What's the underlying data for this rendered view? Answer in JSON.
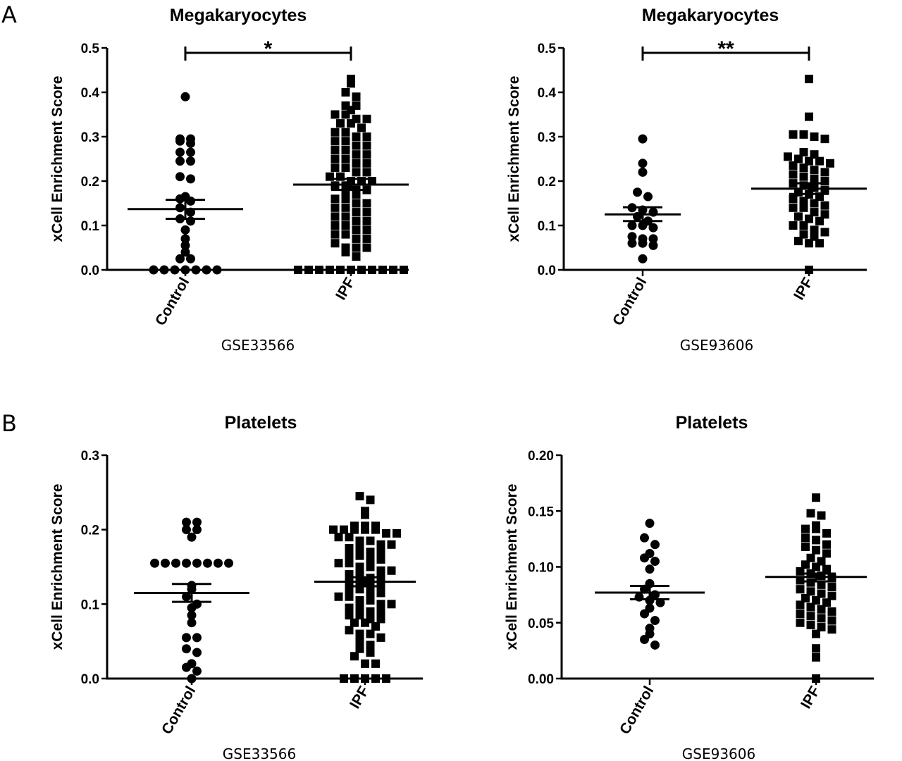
{
  "panel_labels": [
    "A",
    "B"
  ],
  "axis_ylabel": "xCell Enrichment Score",
  "chart_data": [
    {
      "type": "scatter",
      "title": "Megakaryocytes",
      "dataset": "GSE33566",
      "ylabel": "xCell Enrichment Score",
      "ylim": [
        0,
        0.5
      ],
      "yticks": [
        "0.0",
        "0.1",
        "0.2",
        "0.3",
        "0.4",
        "0.5"
      ],
      "categories": [
        "Control",
        "IPF"
      ],
      "significance": "*",
      "groups": [
        {
          "name": "Control",
          "marker": "circle",
          "mean": 0.137,
          "sem_low": 0.115,
          "sem_high": 0.158,
          "values": [
            0.39,
            0.295,
            0.29,
            0.295,
            0.285,
            0.265,
            0.265,
            0.245,
            0.245,
            0.21,
            0.205,
            0.165,
            0.16,
            0.155,
            0.14,
            0.13,
            0.115,
            0.11,
            0.09,
            0.07,
            0.055,
            0.04,
            0.025,
            0.025,
            0.0,
            0.0,
            0.0,
            0.0,
            0.0,
            0.0,
            0.0
          ]
        },
        {
          "name": "IPF",
          "marker": "square",
          "mean": 0.192,
          "sem_low": 0.18,
          "sem_high": 0.205,
          "values": [
            0.43,
            0.42,
            0.4,
            0.39,
            0.37,
            0.37,
            0.36,
            0.35,
            0.35,
            0.34,
            0.34,
            0.33,
            0.33,
            0.32,
            0.31,
            0.31,
            0.3,
            0.3,
            0.29,
            0.29,
            0.28,
            0.28,
            0.27,
            0.27,
            0.26,
            0.26,
            0.25,
            0.25,
            0.24,
            0.24,
            0.23,
            0.23,
            0.22,
            0.22,
            0.21,
            0.21,
            0.2,
            0.2,
            0.2,
            0.19,
            0.19,
            0.18,
            0.18,
            0.17,
            0.17,
            0.16,
            0.16,
            0.15,
            0.15,
            0.14,
            0.14,
            0.13,
            0.13,
            0.12,
            0.12,
            0.11,
            0.11,
            0.1,
            0.1,
            0.09,
            0.09,
            0.08,
            0.08,
            0.07,
            0.07,
            0.06,
            0.05,
            0.05,
            0.05,
            0.04,
            0.03,
            0.0,
            0.0,
            0.0,
            0.0,
            0.0,
            0.0,
            0.0,
            0.0,
            0.0,
            0.0,
            0.0
          ]
        }
      ]
    },
    {
      "type": "scatter",
      "title": "Megakaryocytes",
      "dataset": "GSE93606",
      "ylabel": "xCell Enrichment Score",
      "ylim": [
        0,
        0.5
      ],
      "yticks": [
        "0.0",
        "0.1",
        "0.2",
        "0.3",
        "0.4",
        "0.5"
      ],
      "categories": [
        "Control",
        "IPF"
      ],
      "significance": "**",
      "groups": [
        {
          "name": "Control",
          "marker": "circle",
          "mean": 0.125,
          "sem_low": 0.11,
          "sem_high": 0.141,
          "values": [
            0.295,
            0.24,
            0.22,
            0.175,
            0.165,
            0.14,
            0.135,
            0.13,
            0.12,
            0.11,
            0.1,
            0.1,
            0.095,
            0.075,
            0.07,
            0.07,
            0.06,
            0.06,
            0.055,
            0.025
          ]
        },
        {
          "name": "IPF",
          "marker": "square",
          "mean": 0.183,
          "sem_low": 0.171,
          "sem_high": 0.195,
          "values": [
            0.43,
            0.345,
            0.305,
            0.305,
            0.3,
            0.295,
            0.265,
            0.26,
            0.255,
            0.25,
            0.245,
            0.245,
            0.24,
            0.235,
            0.23,
            0.225,
            0.22,
            0.215,
            0.21,
            0.205,
            0.2,
            0.195,
            0.19,
            0.185,
            0.18,
            0.175,
            0.17,
            0.165,
            0.16,
            0.155,
            0.15,
            0.145,
            0.14,
            0.14,
            0.13,
            0.125,
            0.12,
            0.115,
            0.11,
            0.1,
            0.1,
            0.09,
            0.085,
            0.08,
            0.075,
            0.065,
            0.06,
            0.06,
            0.0
          ]
        }
      ]
    },
    {
      "type": "scatter",
      "title": "Platelets",
      "dataset": "GSE33566",
      "ylabel": "xCell Enrichment Score",
      "ylim": [
        0,
        0.3
      ],
      "yticks": [
        "0.0",
        "0.1",
        "0.2",
        "0.3"
      ],
      "categories": [
        "Control",
        "IPF"
      ],
      "significance": "",
      "groups": [
        {
          "name": "Control",
          "marker": "circle",
          "mean": 0.115,
          "sem_low": 0.103,
          "sem_high": 0.127,
          "values": [
            0.21,
            0.21,
            0.2,
            0.2,
            0.19,
            0.155,
            0.155,
            0.155,
            0.155,
            0.155,
            0.155,
            0.155,
            0.155,
            0.125,
            0.12,
            0.11,
            0.1,
            0.095,
            0.085,
            0.075,
            0.055,
            0.055,
            0.04,
            0.035,
            0.02,
            0.015,
            0.01,
            0.0
          ]
        },
        {
          "name": "IPF",
          "marker": "square",
          "mean": 0.13,
          "sem_low": 0.124,
          "sem_high": 0.136,
          "values": [
            0.245,
            0.24,
            0.225,
            0.22,
            0.205,
            0.205,
            0.205,
            0.2,
            0.2,
            0.2,
            0.2,
            0.2,
            0.195,
            0.195,
            0.19,
            0.19,
            0.185,
            0.185,
            0.18,
            0.18,
            0.175,
            0.175,
            0.17,
            0.17,
            0.165,
            0.165,
            0.16,
            0.16,
            0.155,
            0.155,
            0.15,
            0.15,
            0.145,
            0.145,
            0.14,
            0.14,
            0.135,
            0.135,
            0.13,
            0.13,
            0.125,
            0.125,
            0.12,
            0.12,
            0.115,
            0.115,
            0.11,
            0.11,
            0.105,
            0.105,
            0.1,
            0.1,
            0.095,
            0.095,
            0.09,
            0.09,
            0.085,
            0.085,
            0.08,
            0.08,
            0.075,
            0.075,
            0.07,
            0.065,
            0.06,
            0.06,
            0.055,
            0.05,
            0.045,
            0.04,
            0.035,
            0.03,
            0.02,
            0.02,
            0.0,
            0.0,
            0.0,
            0.0,
            0.0
          ]
        }
      ]
    },
    {
      "type": "scatter",
      "title": "Platelets",
      "dataset": "GSE93606",
      "ylabel": "xCell Enrichment Score",
      "ylim": [
        0,
        0.2
      ],
      "yticks": [
        "0.00",
        "0.05",
        "0.10",
        "0.15",
        "0.20"
      ],
      "categories": [
        "Control",
        "IPF"
      ],
      "significance": "",
      "groups": [
        {
          "name": "Control",
          "marker": "circle",
          "mean": 0.077,
          "sem_low": 0.071,
          "sem_high": 0.083,
          "values": [
            0.139,
            0.126,
            0.12,
            0.112,
            0.108,
            0.105,
            0.098,
            0.085,
            0.08,
            0.075,
            0.073,
            0.07,
            0.068,
            0.063,
            0.058,
            0.052,
            0.045,
            0.04,
            0.035,
            0.03
          ]
        },
        {
          "name": "IPF",
          "marker": "square",
          "mean": 0.091,
          "sem_low": 0.087,
          "sem_high": 0.094,
          "values": [
            0.162,
            0.148,
            0.146,
            0.137,
            0.134,
            0.134,
            0.13,
            0.126,
            0.124,
            0.12,
            0.118,
            0.115,
            0.112,
            0.108,
            0.105,
            0.102,
            0.1,
            0.098,
            0.096,
            0.094,
            0.092,
            0.09,
            0.088,
            0.086,
            0.084,
            0.082,
            0.08,
            0.078,
            0.076,
            0.074,
            0.072,
            0.07,
            0.068,
            0.066,
            0.064,
            0.062,
            0.06,
            0.058,
            0.056,
            0.054,
            0.052,
            0.05,
            0.048,
            0.046,
            0.044,
            0.04,
            0.027,
            0.019,
            0.0
          ]
        }
      ]
    }
  ]
}
